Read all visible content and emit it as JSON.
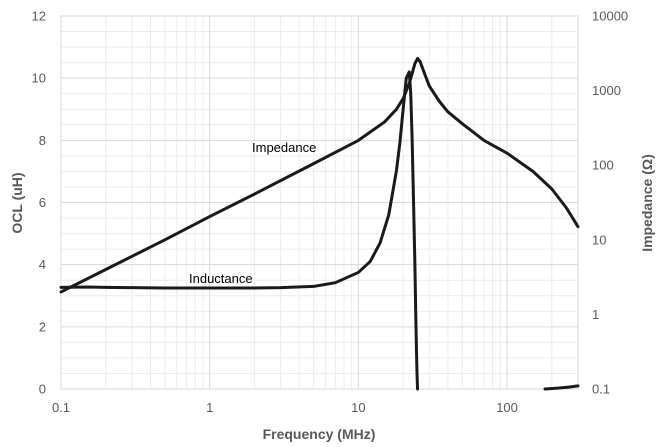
{
  "chart_data": {
    "type": "line",
    "xlabel": "Frequency (MHz)",
    "ylabel": "OCL (uH)",
    "y2label": "Impedance (Ω)",
    "x_scale": "log",
    "xlim": [
      0.1,
      300
    ],
    "ylim": [
      0,
      12
    ],
    "y2_scale": "log",
    "y2lim": [
      0.1,
      10000
    ],
    "grid": true,
    "x_ticks": [
      "0.1",
      "1",
      "10",
      "100"
    ],
    "y_ticks": [
      "0",
      "2",
      "4",
      "6",
      "8",
      "10",
      "12"
    ],
    "y2_ticks": [
      "0.1",
      "1",
      "10",
      "100",
      "1000",
      "10000"
    ],
    "annotations": [
      "Impedance",
      "Inductance"
    ],
    "series": [
      {
        "axis": "y",
        "x": [
          0.1,
          0.15,
          0.2,
          0.3,
          0.5,
          0.7,
          1,
          2,
          3,
          5,
          7,
          10,
          12,
          14,
          16,
          18,
          19,
          20,
          21,
          22,
          22.5,
          23,
          23.5,
          24,
          24.3,
          24.6,
          24.8,
          25
        ],
        "values": [
          3.27,
          3.28,
          3.27,
          3.26,
          3.25,
          3.25,
          3.25,
          3.25,
          3.26,
          3.3,
          3.42,
          3.75,
          4.1,
          4.7,
          5.6,
          7.0,
          7.9,
          9.0,
          10.0,
          10.2,
          9.5,
          8.0,
          6.0,
          4.0,
          2.5,
          1.2,
          0.5,
          0
        ]
      },
      {
        "axis": "y2",
        "x": [
          0.1,
          0.2,
          0.5,
          1,
          2,
          5,
          10,
          15,
          18,
          20,
          22,
          23,
          24,
          25,
          26,
          28,
          30,
          35,
          40,
          50,
          70,
          100,
          150,
          200,
          250,
          300
        ],
        "values": [
          2.0,
          4.0,
          10.0,
          20.5,
          41.0,
          105,
          215,
          380,
          560,
          780,
          1250,
          1700,
          2300,
          2700,
          2450,
          1650,
          1150,
          720,
          520,
          360,
          215,
          145,
          82,
          48,
          27,
          15
        ]
      },
      {
        "axis": "y",
        "x": [
          180,
          220,
          260,
          300
        ],
        "values": [
          0,
          0.03,
          0.06,
          0.1
        ]
      }
    ]
  }
}
